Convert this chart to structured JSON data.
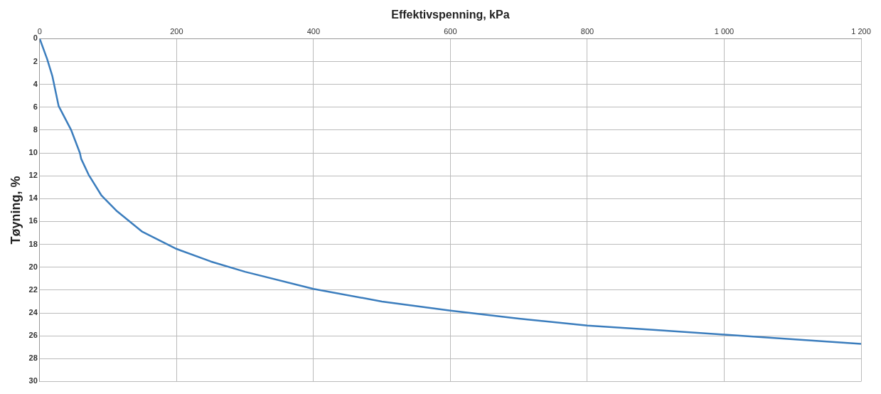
{
  "chart_data": {
    "type": "line",
    "xlabel": "Effektivspenning, kPa",
    "ylabel": "Tøyning, %",
    "xlim": [
      0,
      1200
    ],
    "xticks": [
      0,
      200,
      400,
      600,
      800,
      {
        "value": 1000,
        "label": "1 000"
      },
      {
        "value": 1200,
        "label": "1 200"
      }
    ],
    "ylim": [
      30,
      0
    ],
    "yticks": [
      0,
      2,
      4,
      6,
      8,
      10,
      12,
      14,
      16,
      18,
      20,
      22,
      24,
      26,
      28,
      30
    ],
    "grid": true,
    "legend": false,
    "marker": "none",
    "line_style": "solid",
    "series": [
      {
        "color": "#3b7dbd",
        "x": [
          0,
          11,
          18.6,
          27.7,
          46,
          58.7,
          60.5,
          71.4,
          90,
          113,
          150,
          200,
          250,
          300,
          400,
          500,
          600,
          700,
          800,
          900,
          1000,
          1100,
          1200
        ],
        "values": [
          0,
          1.8,
          3.3,
          5.9,
          8,
          10,
          10.5,
          11.9,
          13.7,
          15.1,
          16.9,
          18.4,
          19.5,
          20.4,
          21.9,
          23,
          23.8,
          24.5,
          25.1,
          25.5,
          25.9,
          26.3,
          26.7
        ]
      }
    ]
  }
}
